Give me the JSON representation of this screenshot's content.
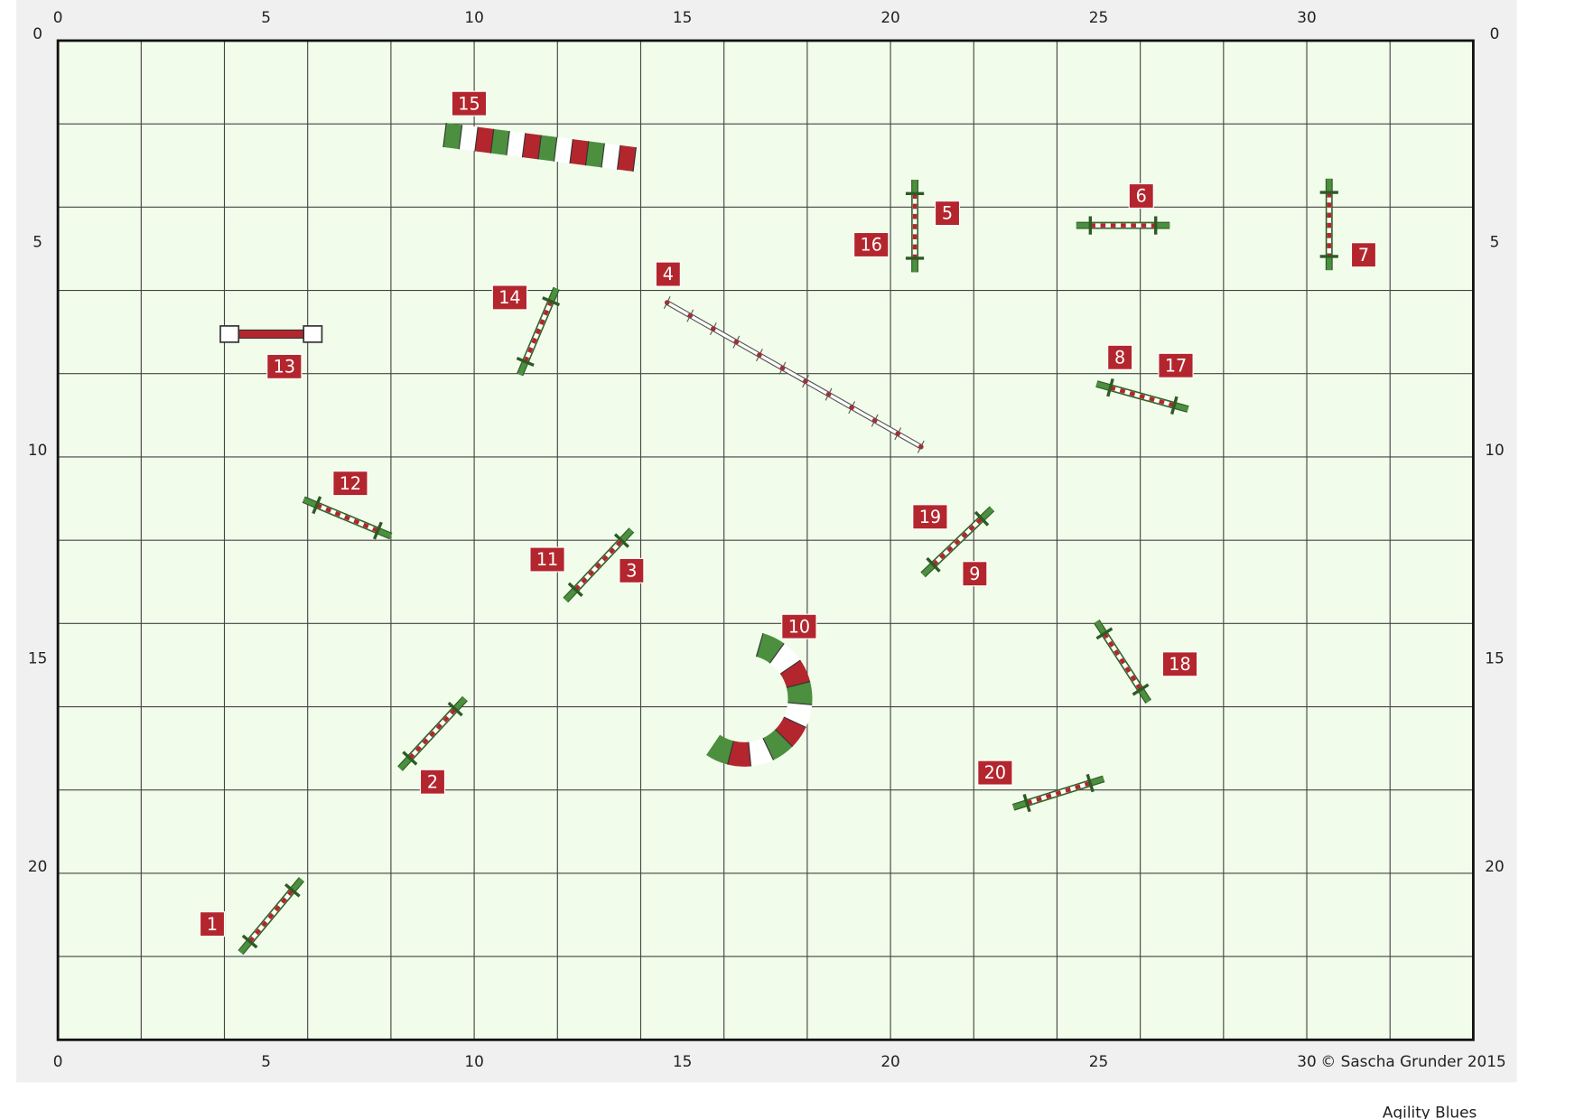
{
  "axes": {
    "x_ticks": [
      0,
      5,
      10,
      15,
      20,
      25,
      30
    ],
    "y_ticks": [
      0,
      5,
      10,
      15,
      20
    ]
  },
  "obstacle_numbers": [
    "1",
    "2",
    "3",
    "4",
    "5",
    "6",
    "7",
    "8",
    "9",
    "10",
    "11",
    "12",
    "13",
    "14",
    "15",
    "16",
    "17",
    "18",
    "19",
    "20"
  ],
  "copyright": "© Sascha Grunder 2015",
  "course_title": "Agility Blues"
}
